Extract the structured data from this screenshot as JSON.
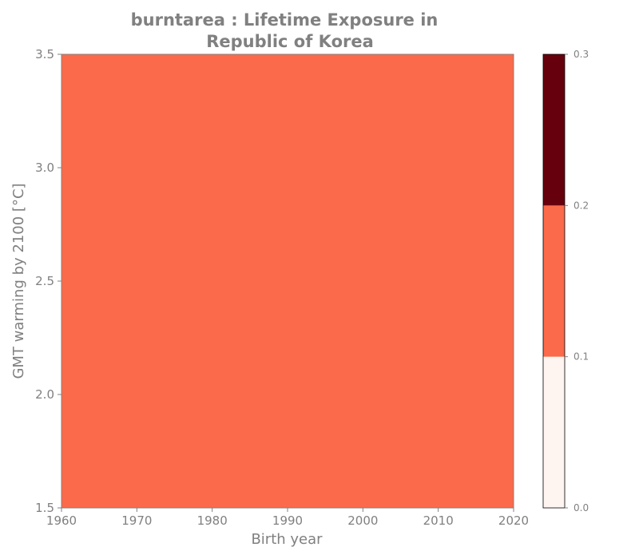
{
  "chart_data": {
    "type": "heatmap",
    "title_lines": [
      "burntarea : Lifetime Exposure in",
      "Republic of Korea"
    ],
    "xlabel": "Birth year",
    "ylabel": "GMT warming by 2100 [°C]",
    "xlim": [
      1960,
      2020
    ],
    "ylim": [
      1.5,
      3.5
    ],
    "x_ticks": [
      "1960",
      "1970",
      "1980",
      "1990",
      "2000",
      "2010",
      "2020"
    ],
    "y_ticks": [
      "1.5",
      "2.0",
      "2.5",
      "3.0",
      "3.5"
    ],
    "cells": [
      {
        "x_range": [
          1960,
          2020
        ],
        "y_range": [
          1.5,
          3.5
        ],
        "value": 0.15
      }
    ],
    "colorbar": {
      "range": [
        0.0,
        0.3
      ],
      "ticks": [
        "0.0",
        "0.1",
        "0.2",
        "0.3"
      ],
      "bins": [
        {
          "from": 0.0,
          "to": 0.1,
          "color": "#fff5f0"
        },
        {
          "from": 0.1,
          "to": 0.2,
          "color": "#fb6a4a"
        },
        {
          "from": 0.2,
          "to": 0.3,
          "color": "#67000d"
        }
      ]
    },
    "fill_color": "#fb6a4a",
    "text_color": "#808080",
    "grid": false,
    "legend": "colorbar-right"
  }
}
